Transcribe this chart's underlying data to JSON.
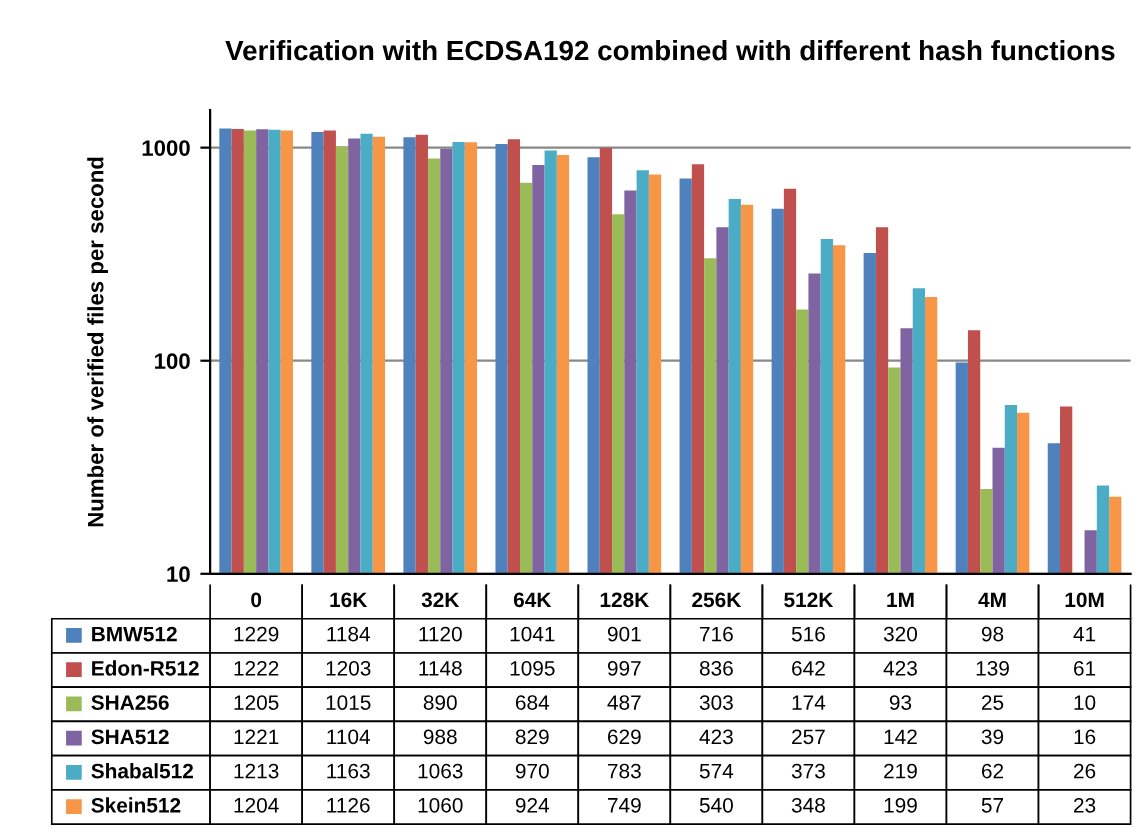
{
  "chart_data": {
    "type": "bar",
    "title": "Verification with ECDSA192 combined with different hash functions",
    "ylabel": "Number of verified files per second",
    "categories": [
      "0",
      "16K",
      "32K",
      "64K",
      "128K",
      "256K",
      "512K",
      "1M",
      "4M",
      "10M"
    ],
    "series": [
      {
        "name": "BMW512",
        "color": "#4f81bd",
        "values": [
          1229,
          1184,
          1120,
          1041,
          901,
          716,
          516,
          320,
          98,
          41
        ]
      },
      {
        "name": "Edon-R512",
        "color": "#c0504d",
        "values": [
          1222,
          1203,
          1148,
          1095,
          997,
          836,
          642,
          423,
          139,
          61
        ]
      },
      {
        "name": "SHA256",
        "color": "#9bbb59",
        "values": [
          1205,
          1015,
          890,
          684,
          487,
          303,
          174,
          93,
          25,
          10
        ]
      },
      {
        "name": "SHA512",
        "color": "#8064a2",
        "values": [
          1221,
          1104,
          988,
          829,
          629,
          423,
          257,
          142,
          39,
          16
        ]
      },
      {
        "name": "Shabal512",
        "color": "#4bacc6",
        "values": [
          1213,
          1163,
          1063,
          970,
          783,
          574,
          373,
          219,
          62,
          26
        ]
      },
      {
        "name": "Skein512",
        "color": "#f79646",
        "values": [
          1204,
          1126,
          1060,
          924,
          749,
          540,
          348,
          199,
          57,
          23
        ]
      }
    ],
    "log": true,
    "ylim": [
      10,
      1500
    ],
    "yticks": [
      10,
      100,
      1000
    ],
    "grid": "y",
    "data_labels": true,
    "legend": "bottom"
  }
}
